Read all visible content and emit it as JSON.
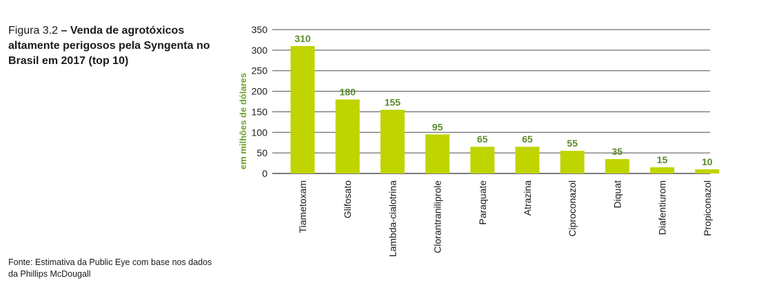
{
  "caption": {
    "figure": "Figura 3.2",
    "title": "– Venda de agrotóxicos altamente perigosos pela Syngenta no Brasil em 2017 (top 10)"
  },
  "source": "Fonte: Estimativa da Public Eye com base nos dados da Phillips McDougall",
  "colors": {
    "bar": "#c0d400",
    "label": "#5a8a2e",
    "ylabel": "#6aa12c",
    "grid": "#4d4d4d"
  },
  "chart_data": {
    "type": "bar",
    "title": "Venda de agrotóxicos altamente perigosos pela Syngenta no Brasil em 2017 (top 10)",
    "xlabel": "",
    "ylabel": "em milhões de dólares",
    "ylim": [
      0,
      350
    ],
    "yticks": [
      0,
      50,
      100,
      150,
      200,
      250,
      300,
      350
    ],
    "grid": true,
    "categories": [
      "Tiametoxam",
      "Glifosato",
      "Lambda-cialotrina",
      "Clorantraniliprole",
      "Paraquate",
      "Atrazina",
      "Ciproconazol",
      "Diquat",
      "Diafentiurom",
      "Propiconazol"
    ],
    "values": [
      310,
      180,
      155,
      95,
      65,
      65,
      55,
      35,
      15,
      10
    ]
  }
}
